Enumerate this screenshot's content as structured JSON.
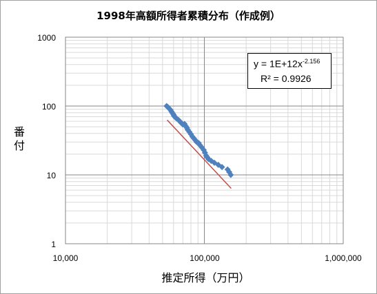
{
  "chart_data": {
    "type": "scatter",
    "title": "1998年高額所得者累積分布（作成例）",
    "xlabel": "推定所得（万円）",
    "ylabel": "番付",
    "xscale": "log",
    "yscale": "log",
    "xlim": [
      10000,
      1000000
    ],
    "ylim": [
      1,
      1000
    ],
    "grid": true,
    "x_ticks": [
      "10,000",
      "100,000",
      "1,000,000"
    ],
    "y_ticks": [
      "1000",
      "100",
      "10",
      "1"
    ],
    "marker_color": "#4f81bd",
    "trend_color": "#c0504d",
    "trendline": {
      "type": "power",
      "equation_prefix": "y = 1E+12x",
      "exponent": "-2.156",
      "r_squared": "R² = 0.9926",
      "x_range": [
        54000,
        156000
      ]
    },
    "points": [
      [
        53500,
        100
      ],
      [
        54500,
        97
      ],
      [
        55500,
        93
      ],
      [
        57000,
        88
      ],
      [
        58000,
        83
      ],
      [
        59000,
        79
      ],
      [
        60000,
        75
      ],
      [
        60500,
        72
      ],
      [
        61500,
        69
      ],
      [
        63000,
        66
      ],
      [
        65000,
        63
      ],
      [
        66500,
        60
      ],
      [
        68000,
        57
      ],
      [
        70000,
        54
      ],
      [
        72000,
        55
      ],
      [
        73500,
        51
      ],
      [
        75000,
        48
      ],
      [
        76000,
        45
      ],
      [
        78000,
        42
      ],
      [
        80000,
        39
      ],
      [
        82000,
        36
      ],
      [
        84000,
        34
      ],
      [
        86000,
        32
      ],
      [
        88000,
        30
      ],
      [
        91000,
        29
      ],
      [
        93000,
        27
      ],
      [
        96000,
        25
      ],
      [
        99000,
        23
      ],
      [
        101000,
        21
      ],
      [
        103000,
        19
      ],
      [
        105000,
        18
      ],
      [
        107000,
        17
      ],
      [
        112000,
        16
      ],
      [
        118000,
        15
      ],
      [
        126000,
        14
      ],
      [
        134000,
        13
      ],
      [
        147000,
        12
      ],
      [
        151000,
        11
      ],
      [
        155000,
        10
      ]
    ]
  }
}
